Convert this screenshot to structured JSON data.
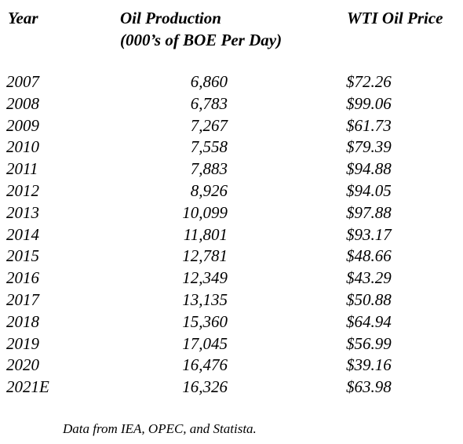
{
  "headers": {
    "year": "Year",
    "oil_line1": "Oil Production",
    "oil_line2": "(000’s of BOE Per Day)",
    "price": "WTI Oil Price"
  },
  "rows": [
    {
      "year": "2007",
      "production": "6,860",
      "price": "$72.26"
    },
    {
      "year": "2008",
      "production": "6,783",
      "price": "$99.06"
    },
    {
      "year": "2009",
      "production": "7,267",
      "price": "$61.73"
    },
    {
      "year": "2010",
      "production": "7,558",
      "price": "$79.39"
    },
    {
      "year": "2011",
      "production": "7,883",
      "price": "$94.88"
    },
    {
      "year": "2012",
      "production": "8,926",
      "price": "$94.05"
    },
    {
      "year": "2013",
      "production": "10,099",
      "price": "$97.88"
    },
    {
      "year": "2014",
      "production": "11,801",
      "price": "$93.17"
    },
    {
      "year": "2015",
      "production": "12,781",
      "price": "$48.66"
    },
    {
      "year": "2016",
      "production": "12,349",
      "price": "$43.29"
    },
    {
      "year": "2017",
      "production": "13,135",
      "price": "$50.88"
    },
    {
      "year": "2018",
      "production": "15,360",
      "price": "$64.94"
    },
    {
      "year": "2019",
      "production": "17,045",
      "price": "$56.99"
    },
    {
      "year": "2020",
      "production": "16,476",
      "price": "$39.16"
    },
    {
      "year": "2021E",
      "production": "16,326",
      "price": "$63.98"
    }
  ],
  "source_note": "Data from IEA, OPEC, and Statista."
}
